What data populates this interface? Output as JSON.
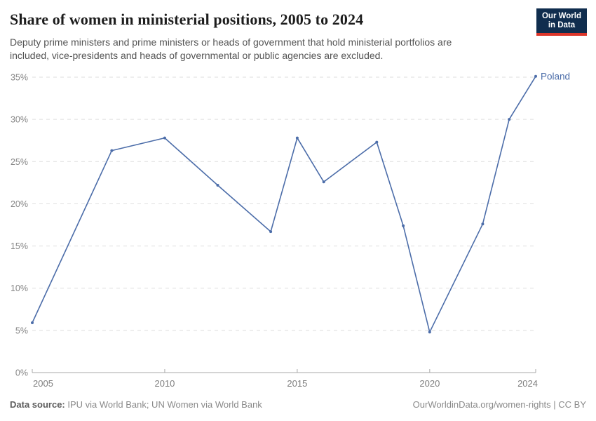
{
  "header": {
    "title": "Share of women in ministerial positions, 2005 to 2024",
    "subtitle": "Deputy prime ministers and prime ministers or heads of government that hold ministerial portfolios are included, vice-presidents and heads of governmental or public agencies are excluded.",
    "logo": {
      "line1": "Our World",
      "line2": "in Data"
    }
  },
  "chart_data": {
    "type": "line",
    "title": "Share of women in ministerial positions, 2005 to 2024",
    "xlabel": "",
    "ylabel": "",
    "xlim": [
      2005,
      2024
    ],
    "ylim": [
      0,
      35
    ],
    "x_ticks": [
      2005,
      2010,
      2015,
      2020,
      2024
    ],
    "y_ticks": [
      0,
      5,
      10,
      15,
      20,
      25,
      30,
      35
    ],
    "y_tick_suffix": "%",
    "grid": "horizontal-dashed",
    "legend_position": "end-of-line-label",
    "series": [
      {
        "name": "Poland",
        "color": "#4C6DA9",
        "points": [
          [
            2005,
            5.9
          ],
          [
            2008,
            26.3
          ],
          [
            2010,
            27.8
          ],
          [
            2012,
            22.2
          ],
          [
            2014,
            16.7
          ],
          [
            2015,
            27.8
          ],
          [
            2016,
            22.6
          ],
          [
            2018,
            27.3
          ],
          [
            2019,
            17.4
          ],
          [
            2020,
            4.8
          ],
          [
            2022,
            17.6
          ],
          [
            2023,
            30.0
          ],
          [
            2024,
            35.1
          ]
        ]
      }
    ]
  },
  "footer": {
    "source_label": "Data source:",
    "source_text": " IPU via World Bank; UN Women via World Bank",
    "link_text": "OurWorldinData.org/women-rights | CC BY"
  },
  "colors": {
    "line": "#4C6DA9",
    "logo_background": "#102D4E",
    "logo_accent": "#DC352A",
    "gridline": "#DEDEDE",
    "axis": "#A8A8A8",
    "tick_label": "#858585"
  }
}
